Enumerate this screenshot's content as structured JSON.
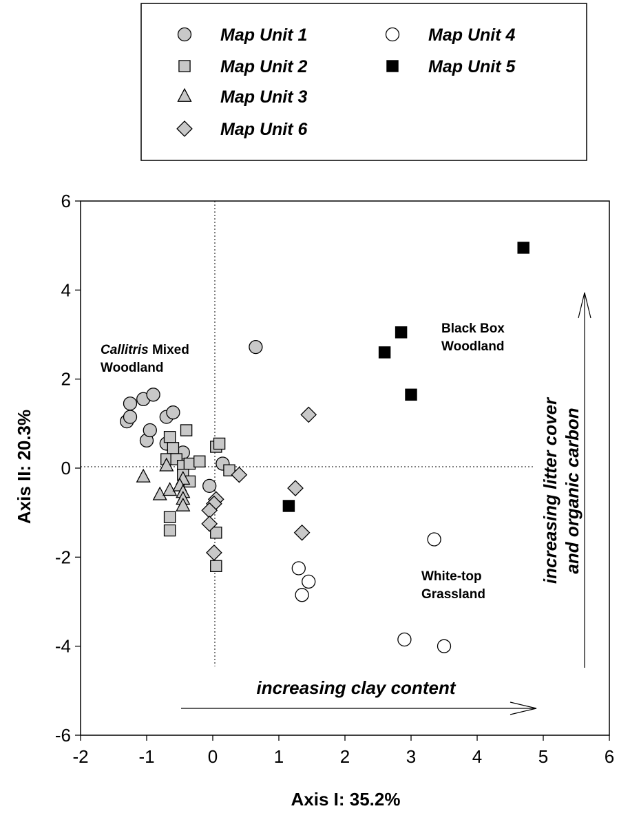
{
  "chart_data": {
    "type": "scatter",
    "xlabel": "Axis I: 35.2%",
    "ylabel": "Axis II: 20.3%",
    "xlim": [
      -2,
      6
    ],
    "ylim": [
      -6,
      6
    ],
    "xticks": [
      "-2",
      "-1",
      "0",
      "1",
      "2",
      "3",
      "4",
      "5",
      "6"
    ],
    "yticks": [
      "-6",
      "-4",
      "-2",
      "0",
      "2",
      "4",
      "6"
    ],
    "grid": false,
    "reference_lines": [
      "x = 0 (dotted)",
      "y = 0 (dotted)"
    ],
    "legend": {
      "placement": "top",
      "entries": [
        {
          "label": "Map Unit 1",
          "marker": "circle",
          "fill": "#c8c8c8"
        },
        {
          "label": "Map Unit 2",
          "marker": "square",
          "fill": "#c8c8c8"
        },
        {
          "label": "Map Unit 3",
          "marker": "triangle",
          "fill": "#c8c8c8"
        },
        {
          "label": "Map Unit 6",
          "marker": "diamond",
          "fill": "#c8c8c8"
        },
        {
          "label": "Map Unit 4",
          "marker": "circle",
          "fill": "#ffffff"
        },
        {
          "label": "Map Unit 5",
          "marker": "square",
          "fill": "#000000"
        }
      ]
    },
    "annotations": {
      "callitris_italic": "Callitris",
      "callitris_rest": " Mixed",
      "callitris_line2": "Woodland",
      "blackbox_line1": "Black Box",
      "blackbox_line2": "Woodland",
      "whitetop_line1": "White-top",
      "whitetop_line2": "Grassland",
      "clay_arrow": "increasing clay content",
      "litter_arrow_line1": "increasing litter cover",
      "litter_arrow_line2": "and organic carbon"
    },
    "series": [
      {
        "name": "Map Unit 1",
        "marker": "circle",
        "fill": "#c8c8c8",
        "points": [
          [
            -1.3,
            1.05
          ],
          [
            -1.25,
            1.15
          ],
          [
            -1.25,
            1.45
          ],
          [
            -1.05,
            1.55
          ],
          [
            -0.9,
            1.65
          ],
          [
            -1.0,
            0.62
          ],
          [
            -0.95,
            0.85
          ],
          [
            -0.7,
            1.15
          ],
          [
            -0.6,
            1.25
          ],
          [
            -0.7,
            0.55
          ],
          [
            -0.45,
            0.35
          ],
          [
            -0.05,
            -0.4
          ],
          [
            0.15,
            0.1
          ],
          [
            0.65,
            2.72
          ]
        ]
      },
      {
        "name": "Map Unit 2",
        "marker": "square",
        "fill": "#c8c8c8",
        "points": [
          [
            -0.65,
            0.7
          ],
          [
            -0.6,
            0.45
          ],
          [
            -0.4,
            0.85
          ],
          [
            -0.7,
            0.2
          ],
          [
            -0.55,
            0.2
          ],
          [
            -0.45,
            0.05
          ],
          [
            -0.35,
            0.1
          ],
          [
            -0.2,
            0.15
          ],
          [
            -0.45,
            -0.15
          ],
          [
            -0.35,
            -0.3
          ],
          [
            -0.65,
            -1.1
          ],
          [
            -0.65,
            -1.4
          ],
          [
            0.05,
            0.48
          ],
          [
            0.1,
            0.55
          ],
          [
            0.25,
            -0.05
          ],
          [
            0.05,
            -1.45
          ],
          [
            0.05,
            -2.2
          ]
        ]
      },
      {
        "name": "Map Unit 3",
        "marker": "triangle",
        "fill": "#c8c8c8",
        "points": [
          [
            -1.05,
            -0.2
          ],
          [
            -0.7,
            0.05
          ],
          [
            -0.8,
            -0.6
          ],
          [
            -0.65,
            -0.5
          ],
          [
            -0.45,
            -0.25
          ],
          [
            -0.5,
            -0.4
          ],
          [
            -0.45,
            -0.55
          ],
          [
            -0.45,
            -0.7
          ],
          [
            -0.45,
            -0.85
          ]
        ]
      },
      {
        "name": "Map Unit 6",
        "marker": "diamond",
        "fill": "#c8c8c8",
        "points": [
          [
            0.05,
            -0.7
          ],
          [
            0.02,
            -0.8
          ],
          [
            -0.05,
            -0.95
          ],
          [
            -0.05,
            -1.25
          ],
          [
            0.02,
            -1.9
          ],
          [
            0.4,
            -0.15
          ],
          [
            1.45,
            1.2
          ],
          [
            1.25,
            -0.45
          ],
          [
            1.35,
            -1.45
          ]
        ]
      },
      {
        "name": "Map Unit 4",
        "marker": "circle",
        "fill": "#ffffff",
        "points": [
          [
            1.3,
            -2.25
          ],
          [
            1.35,
            -2.85
          ],
          [
            1.45,
            -2.55
          ],
          [
            3.35,
            -1.6
          ],
          [
            2.9,
            -3.85
          ],
          [
            3.5,
            -4.0
          ]
        ]
      },
      {
        "name": "Map Unit 5",
        "marker": "square",
        "fill": "#000000",
        "points": [
          [
            4.7,
            4.95
          ],
          [
            2.85,
            3.05
          ],
          [
            2.6,
            2.6
          ],
          [
            3.0,
            1.65
          ],
          [
            1.15,
            -0.85
          ]
        ]
      }
    ]
  }
}
